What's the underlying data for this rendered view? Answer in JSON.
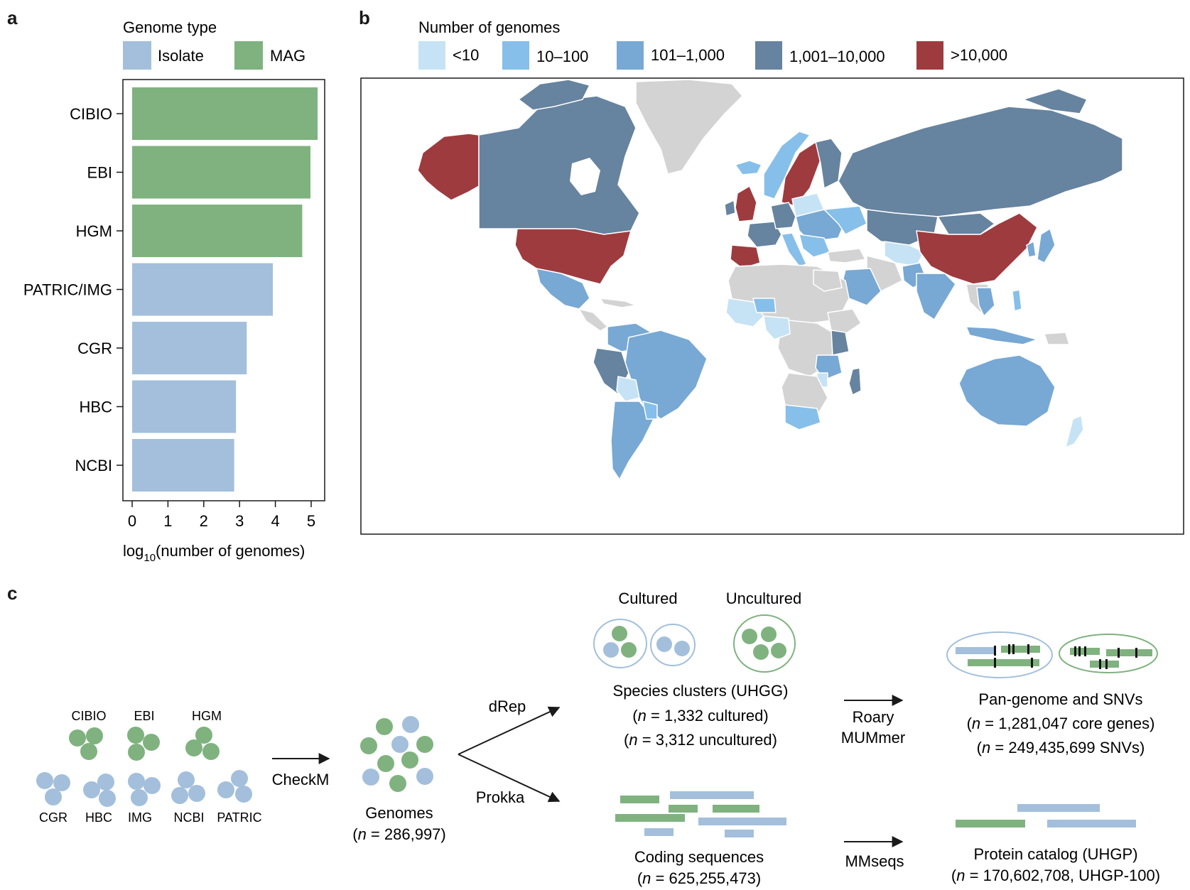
{
  "panels": {
    "a": "a",
    "b": "b",
    "c": "c"
  },
  "colors": {
    "isolate": "#a3bfdb",
    "mag": "#7fb27f",
    "lt10": "#c6e3f5",
    "r10_100": "#86bfe9",
    "r101_1000": "#78a8d4",
    "r1001_10000": "#66839f",
    "gt10000": "#9e3b3f",
    "nodata": "#d3d3d3"
  },
  "chart_data": {
    "type": "bar",
    "orientation": "horizontal",
    "legend_title": "Genome type",
    "legend": [
      {
        "label": "Isolate",
        "color": "#a3bfdb"
      },
      {
        "label": "MAG",
        "color": "#7fb27f"
      }
    ],
    "categories": [
      "CIBIO",
      "EBI",
      "HGM",
      "PATRIC/IMG",
      "CGR",
      "HBC",
      "NCBI"
    ],
    "values": [
      5.18,
      4.98,
      4.75,
      3.93,
      3.2,
      2.9,
      2.85
    ],
    "category_type": [
      "MAG",
      "MAG",
      "MAG",
      "Isolate",
      "Isolate",
      "Isolate",
      "Isolate"
    ],
    "xlim": [
      0,
      5.5
    ],
    "xticks": [
      "0",
      "1",
      "2",
      "3",
      "4",
      "5"
    ],
    "xlabel_main": "log",
    "xlabel_sub": "10",
    "xlabel_rest": "(number of genomes)"
  },
  "map": {
    "legend_title": "Number of genomes",
    "legend": [
      {
        "label": "<10",
        "color": "#c6e3f5"
      },
      {
        "label": "10–100",
        "color": "#86bfe9"
      },
      {
        "label": "101–1,000",
        "color": "#78a8d4"
      },
      {
        "label": "1,001–10,000",
        "color": "#66839f"
      },
      {
        "label": ">10,000",
        "color": "#9e3b3f"
      }
    ]
  },
  "workflow": {
    "sources_mag": [
      "CIBIO",
      "EBI",
      "HGM"
    ],
    "sources_isolate": [
      "CGR",
      "HBC",
      "IMG",
      "NCBI",
      "PATRIC"
    ],
    "checkm": "CheckM",
    "genomes_label": "Genomes",
    "genomes_n": "286,997",
    "n_italic": "n",
    "drep": "dRep",
    "prokka": "Prokka",
    "cultured": "Cultured",
    "uncultured": "Uncultured",
    "species_clusters": "Species clusters (UHGG)",
    "species_cultured_n": "1,332 cultured",
    "species_uncultured_n": "3,312 uncultured",
    "coding_sequences": "Coding sequences",
    "coding_n": "625,255,473",
    "roary": "Roary",
    "mummer": "MUMmer",
    "mmseqs": "MMseqs",
    "pangenome": "Pan-genome and SNVs",
    "pangenome_genes_n": "1,281,047 core genes",
    "pangenome_snvs_n": "249,435,699 SNVs",
    "protein_catalog": "Protein catalog (UHGP)",
    "protein_n": "170,602,708, UHGP-100"
  }
}
